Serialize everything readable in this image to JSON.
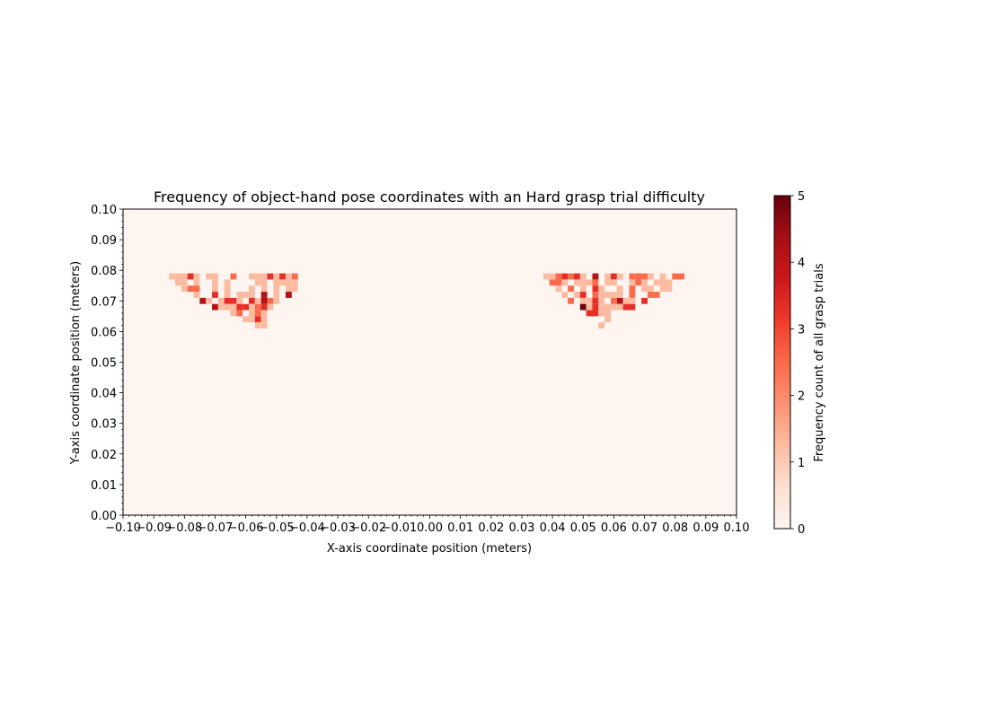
{
  "chart_data": {
    "type": "heatmap",
    "title": "Frequency of object-hand pose coordinates with an Hard grasp trial difficulty",
    "xlabel": "X-axis coordinate position (meters)",
    "ylabel": "Y-axis coordinate position (meters)",
    "xlim": [
      -0.1,
      0.1
    ],
    "ylim": [
      0.0,
      0.1
    ],
    "x_ticks": [
      -0.1,
      -0.09,
      -0.08,
      -0.07,
      -0.06,
      -0.05,
      -0.04,
      -0.03,
      -0.02,
      -0.01,
      0.0,
      0.01,
      0.02,
      0.03,
      0.04,
      0.05,
      0.06,
      0.07,
      0.08,
      0.09,
      0.1
    ],
    "x_tick_labels": [
      "−0.10",
      "−0.09",
      "−0.08",
      "−0.07",
      "−0.06",
      "−0.05",
      "−0.04",
      "−0.03",
      "−0.02",
      "−0.01",
      "0.00",
      "0.01",
      "0.02",
      "0.03",
      "0.04",
      "0.05",
      "0.06",
      "0.07",
      "0.08",
      "0.09",
      "0.10"
    ],
    "y_ticks": [
      0.0,
      0.01,
      0.02,
      0.03,
      0.04,
      0.05,
      0.06,
      0.07,
      0.08,
      0.09,
      0.1
    ],
    "y_tick_labels": [
      "0.00",
      "0.01",
      "0.02",
      "0.03",
      "0.04",
      "0.05",
      "0.06",
      "0.07",
      "0.08",
      "0.09",
      "0.10"
    ],
    "bin_size": 0.002,
    "colormap": "Reds",
    "colorbar": {
      "label": "Frequency count of all grasp trials",
      "min": 0,
      "max": 5,
      "ticks": [
        0,
        1,
        2,
        3,
        4,
        5
      ]
    },
    "cells": [
      [
        -0.084,
        0.078,
        1
      ],
      [
        -0.082,
        0.078,
        1
      ],
      [
        -0.08,
        0.078,
        1
      ],
      [
        -0.078,
        0.078,
        3
      ],
      [
        -0.076,
        0.078,
        1
      ],
      [
        -0.072,
        0.078,
        1
      ],
      [
        -0.07,
        0.078,
        1
      ],
      [
        -0.064,
        0.078,
        2
      ],
      [
        -0.058,
        0.078,
        1
      ],
      [
        -0.056,
        0.078,
        1
      ],
      [
        -0.054,
        0.078,
        1
      ],
      [
        -0.052,
        0.078,
        3
      ],
      [
        -0.05,
        0.078,
        1
      ],
      [
        -0.048,
        0.078,
        3
      ],
      [
        -0.046,
        0.078,
        1
      ],
      [
        -0.044,
        0.078,
        2
      ],
      [
        -0.082,
        0.076,
        1
      ],
      [
        -0.08,
        0.076,
        1
      ],
      [
        -0.076,
        0.076,
        1
      ],
      [
        -0.07,
        0.076,
        1
      ],
      [
        -0.066,
        0.076,
        1
      ],
      [
        -0.056,
        0.076,
        1
      ],
      [
        -0.054,
        0.076,
        1
      ],
      [
        -0.05,
        0.076,
        1
      ],
      [
        -0.048,
        0.076,
        1
      ],
      [
        -0.046,
        0.076,
        1
      ],
      [
        -0.044,
        0.076,
        1
      ],
      [
        -0.08,
        0.074,
        1
      ],
      [
        -0.078,
        0.074,
        2
      ],
      [
        -0.076,
        0.074,
        2
      ],
      [
        -0.07,
        0.074,
        1
      ],
      [
        -0.066,
        0.074,
        1
      ],
      [
        -0.058,
        0.074,
        1
      ],
      [
        -0.054,
        0.074,
        1
      ],
      [
        -0.05,
        0.074,
        1
      ],
      [
        -0.046,
        0.074,
        1
      ],
      [
        -0.044,
        0.074,
        1
      ],
      [
        -0.076,
        0.072,
        1
      ],
      [
        -0.07,
        0.072,
        3
      ],
      [
        -0.066,
        0.072,
        1
      ],
      [
        -0.062,
        0.072,
        1
      ],
      [
        -0.06,
        0.072,
        1
      ],
      [
        -0.058,
        0.072,
        1
      ],
      [
        -0.054,
        0.072,
        4
      ],
      [
        -0.05,
        0.072,
        1
      ],
      [
        -0.046,
        0.072,
        4
      ],
      [
        -0.074,
        0.07,
        4
      ],
      [
        -0.072,
        0.07,
        1
      ],
      [
        -0.068,
        0.07,
        1
      ],
      [
        -0.066,
        0.07,
        3
      ],
      [
        -0.064,
        0.07,
        3
      ],
      [
        -0.062,
        0.07,
        1
      ],
      [
        -0.058,
        0.07,
        3
      ],
      [
        -0.056,
        0.07,
        1
      ],
      [
        -0.054,
        0.07,
        4
      ],
      [
        -0.052,
        0.07,
        2
      ],
      [
        -0.05,
        0.07,
        1
      ],
      [
        -0.07,
        0.068,
        4
      ],
      [
        -0.068,
        0.068,
        1
      ],
      [
        -0.066,
        0.068,
        1
      ],
      [
        -0.064,
        0.068,
        1
      ],
      [
        -0.062,
        0.068,
        3
      ],
      [
        -0.06,
        0.068,
        3
      ],
      [
        -0.058,
        0.068,
        1
      ],
      [
        -0.056,
        0.068,
        2
      ],
      [
        -0.054,
        0.068,
        3
      ],
      [
        -0.052,
        0.068,
        1
      ],
      [
        -0.064,
        0.066,
        1
      ],
      [
        -0.062,
        0.066,
        2
      ],
      [
        -0.058,
        0.066,
        1
      ],
      [
        -0.056,
        0.066,
        2
      ],
      [
        -0.054,
        0.066,
        1
      ],
      [
        -0.06,
        0.064,
        1
      ],
      [
        -0.058,
        0.064,
        1
      ],
      [
        -0.056,
        0.064,
        3
      ],
      [
        -0.054,
        0.064,
        1
      ],
      [
        -0.056,
        0.062,
        1
      ],
      [
        -0.054,
        0.062,
        1
      ],
      [
        0.038,
        0.078,
        1
      ],
      [
        0.04,
        0.078,
        1
      ],
      [
        0.042,
        0.078,
        2
      ],
      [
        0.044,
        0.078,
        3
      ],
      [
        0.046,
        0.078,
        2
      ],
      [
        0.048,
        0.078,
        3
      ],
      [
        0.05,
        0.078,
        1
      ],
      [
        0.054,
        0.078,
        4
      ],
      [
        0.058,
        0.078,
        1
      ],
      [
        0.06,
        0.078,
        3
      ],
      [
        0.062,
        0.078,
        1
      ],
      [
        0.066,
        0.078,
        2
      ],
      [
        0.068,
        0.078,
        2
      ],
      [
        0.07,
        0.078,
        2
      ],
      [
        0.072,
        0.078,
        1
      ],
      [
        0.076,
        0.078,
        1
      ],
      [
        0.08,
        0.078,
        2
      ],
      [
        0.082,
        0.078,
        2
      ],
      [
        0.04,
        0.076,
        2
      ],
      [
        0.042,
        0.076,
        2
      ],
      [
        0.044,
        0.076,
        1
      ],
      [
        0.048,
        0.076,
        1
      ],
      [
        0.05,
        0.076,
        1
      ],
      [
        0.052,
        0.076,
        1
      ],
      [
        0.054,
        0.076,
        2
      ],
      [
        0.058,
        0.076,
        1
      ],
      [
        0.06,
        0.076,
        1
      ],
      [
        0.066,
        0.076,
        1
      ],
      [
        0.068,
        0.076,
        2
      ],
      [
        0.07,
        0.076,
        1
      ],
      [
        0.074,
        0.076,
        1
      ],
      [
        0.076,
        0.076,
        1
      ],
      [
        0.078,
        0.076,
        1
      ],
      [
        0.042,
        0.074,
        1
      ],
      [
        0.046,
        0.074,
        2
      ],
      [
        0.05,
        0.074,
        1
      ],
      [
        0.054,
        0.074,
        3
      ],
      [
        0.056,
        0.074,
        1
      ],
      [
        0.062,
        0.074,
        1
      ],
      [
        0.066,
        0.074,
        2
      ],
      [
        0.07,
        0.074,
        1
      ],
      [
        0.072,
        0.074,
        1
      ],
      [
        0.076,
        0.074,
        1
      ],
      [
        0.078,
        0.074,
        1
      ],
      [
        0.044,
        0.072,
        1
      ],
      [
        0.048,
        0.072,
        1
      ],
      [
        0.05,
        0.072,
        3
      ],
      [
        0.054,
        0.072,
        2
      ],
      [
        0.056,
        0.072,
        1
      ],
      [
        0.058,
        0.072,
        1
      ],
      [
        0.06,
        0.072,
        1
      ],
      [
        0.062,
        0.072,
        1
      ],
      [
        0.066,
        0.072,
        2
      ],
      [
        0.072,
        0.072,
        2
      ],
      [
        0.074,
        0.072,
        2
      ],
      [
        0.046,
        0.07,
        2
      ],
      [
        0.05,
        0.07,
        1
      ],
      [
        0.052,
        0.07,
        1
      ],
      [
        0.054,
        0.07,
        3
      ],
      [
        0.056,
        0.07,
        1
      ],
      [
        0.06,
        0.07,
        2
      ],
      [
        0.062,
        0.07,
        4
      ],
      [
        0.064,
        0.07,
        1
      ],
      [
        0.066,
        0.07,
        1
      ],
      [
        0.07,
        0.07,
        3
      ],
      [
        0.05,
        0.068,
        5
      ],
      [
        0.052,
        0.068,
        1
      ],
      [
        0.054,
        0.068,
        3
      ],
      [
        0.056,
        0.068,
        1
      ],
      [
        0.058,
        0.068,
        1
      ],
      [
        0.06,
        0.068,
        1
      ],
      [
        0.062,
        0.068,
        1
      ],
      [
        0.064,
        0.068,
        3
      ],
      [
        0.066,
        0.068,
        3
      ],
      [
        0.052,
        0.066,
        3
      ],
      [
        0.054,
        0.066,
        3
      ],
      [
        0.056,
        0.066,
        1
      ],
      [
        0.058,
        0.066,
        1
      ],
      [
        0.058,
        0.064,
        1
      ],
      [
        0.056,
        0.062,
        1
      ]
    ]
  }
}
